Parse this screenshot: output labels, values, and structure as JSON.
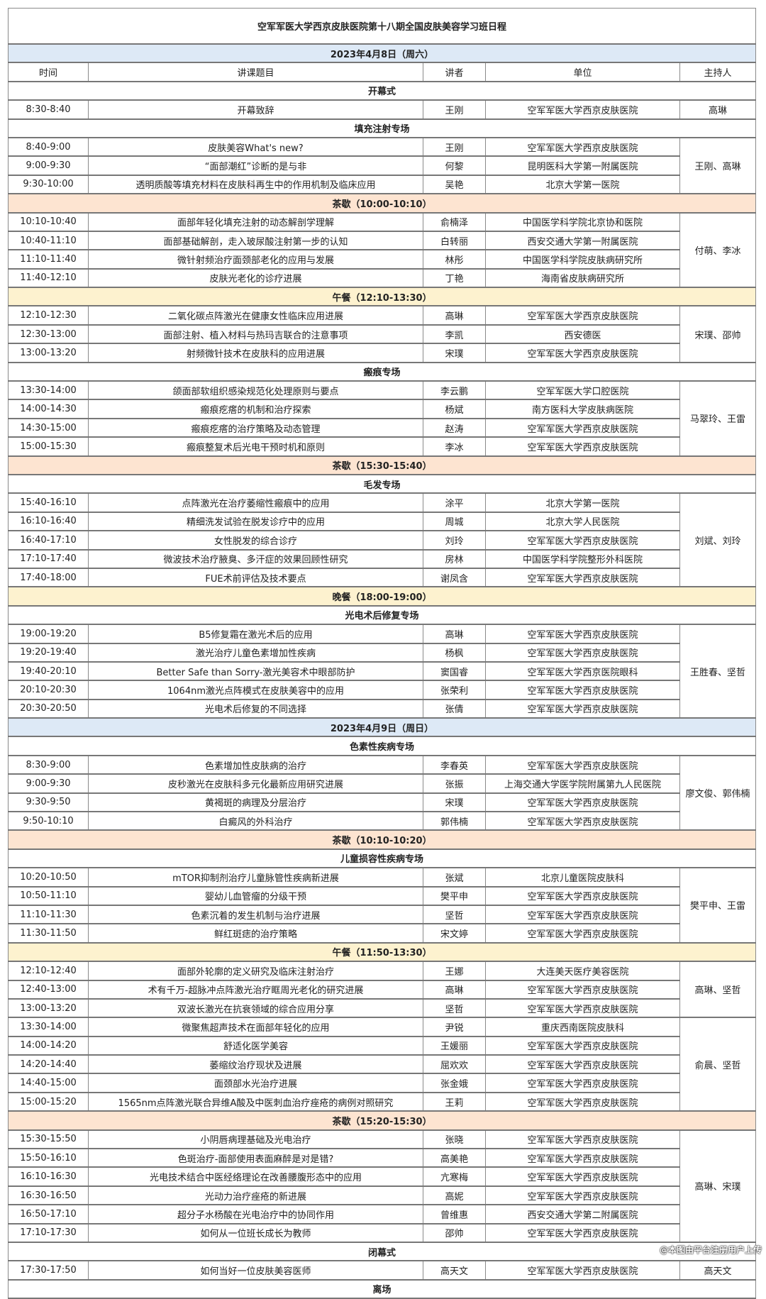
{
  "title": "空军军医大学西京皮肤医院第十八期全国皮肤美容学习班日程",
  "header": {
    "time": "时间",
    "topic": "讲课题目",
    "speaker": "讲者",
    "unit": "单位",
    "host": "主持人"
  },
  "colors": {
    "date_row": "#dde9f6",
    "tea_break": "#fde4d1",
    "meal": "#fdf2cf"
  },
  "watermark": "@本图由平台注册用户上传",
  "days": [
    {
      "date": "2023年4月8日（周六）",
      "blocks": [
        {
          "type": "section",
          "label": "开幕式"
        },
        {
          "type": "group",
          "host": "高琳",
          "talks": [
            {
              "time": "8:30-8:40",
              "topic": "开幕致辞",
              "speaker": "王刚",
              "unit": "空军军医大学西京皮肤医院"
            }
          ]
        },
        {
          "type": "section",
          "label": "填充注射专场"
        },
        {
          "type": "group",
          "host": "王刚、高琳",
          "talks": [
            {
              "time": "8:40-9:00",
              "topic": "皮肤美容What's new?",
              "speaker": "王刚",
              "unit": "空军军医大学西京皮肤医院"
            },
            {
              "time": "9:00-9:30",
              "topic": "“面部潮红”诊断的是与非",
              "speaker": "何黎",
              "unit": "昆明医科大学第一附属医院"
            },
            {
              "time": "9:30-10:00",
              "topic": "透明质酸等填充材料在皮肤科再生中的作用机制及临床应用",
              "speaker": "吴艳",
              "unit": "北京大学第一医院"
            }
          ]
        },
        {
          "type": "break",
          "label": "茶歇（10:00-10:10）"
        },
        {
          "type": "group",
          "host": "付萌、李冰",
          "talks": [
            {
              "time": "10:10-10:40",
              "topic": "面部年轻化填充注射的动态解剖学理解",
              "speaker": "俞楠泽",
              "unit": "中国医学科学院北京协和医院"
            },
            {
              "time": "10:40-11:10",
              "topic": "面部基础解剖，走入玻尿酸注射第一步的认知",
              "speaker": "白转丽",
              "unit": "西安交通大学第一附属医院"
            },
            {
              "time": "11:10-11:40",
              "topic": "微针射频治疗面颈部老化的应用与发展",
              "speaker": "林彤",
              "unit": "中国医学科学院皮肤病研究所"
            },
            {
              "time": "11:40-12:10",
              "topic": "皮肤光老化的诊疗进展",
              "speaker": "丁艳",
              "unit": "海南省皮肤病研究所"
            }
          ]
        },
        {
          "type": "meal",
          "label": "午餐（12:10-13:30）"
        },
        {
          "type": "group",
          "host": "宋璞、邵帅",
          "talks": [
            {
              "time": "12:10-12:30",
              "topic": "二氧化碳点阵激光在健康女性临床应用进展",
              "speaker": "高琳",
              "unit": "空军军医大学西京皮肤医院"
            },
            {
              "time": "12:30-13:00",
              "topic": "面部注射、植入材料与热玛吉联合的注意事项",
              "speaker": "李凯",
              "unit": "西安德医"
            },
            {
              "time": "13:00-13:20",
              "topic": "射频微针技术在皮肤科的应用进展",
              "speaker": "宋璞",
              "unit": "空军军医大学西京皮肤医院"
            }
          ]
        },
        {
          "type": "section",
          "label": "瘢痕专场"
        },
        {
          "type": "group",
          "host": "马翠玲、王雷",
          "talks": [
            {
              "time": "13:30-14:00",
              "topic": "颌面部软组织感染规范化处理原则与要点",
              "speaker": "李云鹏",
              "unit": "空军军医大学口腔医院"
            },
            {
              "time": "14:00-14:30",
              "topic": "瘢痕疙瘩的机制和治疗探索",
              "speaker": "杨斌",
              "unit": "南方医科大学皮肤病医院"
            },
            {
              "time": "14:30-15:00",
              "topic": "瘢痕疙瘩的治疗策略及动态管理",
              "speaker": "赵涛",
              "unit": "空军军医大学西京皮肤医院"
            },
            {
              "time": "15:00-15:30",
              "topic": "瘢痕整复术后光电干预时机和原则",
              "speaker": "李冰",
              "unit": "空军军医大学西京皮肤医院"
            }
          ]
        },
        {
          "type": "break",
          "label": "茶歇（15:30-15:40）"
        },
        {
          "type": "section",
          "label": "毛发专场"
        },
        {
          "type": "group",
          "host": "刘斌、刘玲",
          "talks": [
            {
              "time": "15:40-16:10",
              "topic": "点阵激光在治疗萎缩性瘢痕中的应用",
              "speaker": "涂平",
              "unit": "北京大学第一医院"
            },
            {
              "time": "16:10-16:40",
              "topic": "精细洗发试验在脱发诊疗中的应用",
              "speaker": "周城",
              "unit": "北京大学人民医院"
            },
            {
              "time": "16:40-17:10",
              "topic": "女性脱发的综合诊疗",
              "speaker": "刘玲",
              "unit": "空军军医大学西京皮肤医院"
            },
            {
              "time": "17:10-17:40",
              "topic": "微波技术治疗腋臭、多汗症的效果回顾性研究",
              "speaker": "房林",
              "unit": "中国医学科学院整形外科医院"
            },
            {
              "time": "17:40-18:00",
              "topic": "FUE术前评估及技术要点",
              "speaker": "谢凤含",
              "unit": "空军军医大学西京皮肤医院"
            }
          ]
        },
        {
          "type": "meal",
          "label": "晚餐（18:00-19:00）"
        },
        {
          "type": "section",
          "label": "光电术后修复专场"
        },
        {
          "type": "group",
          "host": "王胜春、坚哲",
          "talks": [
            {
              "time": "19:00-19:20",
              "topic": "B5修复霜在激光术后的应用",
              "speaker": "高琳",
              "unit": "空军军医大学西京皮肤医院"
            },
            {
              "time": "19:20-19:40",
              "topic": "激光治疗儿童色素增加性疾病",
              "speaker": "杨枫",
              "unit": "空军军医大学西京皮肤医院"
            },
            {
              "time": "19:40-20:10",
              "topic": "Better Safe than Sorry-激光美容术中眼部防护",
              "speaker": "窦国睿",
              "unit": "空军军医大学西京医院眼科"
            },
            {
              "time": "20:10-20:30",
              "topic": "1064nm激光点阵模式在皮肤美容中的应用",
              "speaker": "张荣利",
              "unit": "空军军医大学西京皮肤医院"
            },
            {
              "time": "20:30-20:50",
              "topic": "光电术后修复的不同选择",
              "speaker": "张倩",
              "unit": "空军军医大学西京皮肤医院"
            }
          ]
        }
      ]
    },
    {
      "date": "2023年4月9日（周日）",
      "blocks": [
        {
          "type": "section",
          "label": "色素性疾病专场"
        },
        {
          "type": "group",
          "host": "廖文俊、郭伟楠",
          "talks": [
            {
              "time": "8:30-9:00",
              "topic": "色素增加性皮肤病的治疗",
              "speaker": "李春英",
              "unit": "空军军医大学西京皮肤医院"
            },
            {
              "time": "9:00-9:30",
              "topic": "皮秒激光在皮肤科多元化最新应用研究进展",
              "speaker": "张振",
              "unit": "上海交通大学医学院附属第九人民医院"
            },
            {
              "time": "9:30-9:50",
              "topic": "黄褐斑的病理及分层治疗",
              "speaker": "宋璞",
              "unit": "空军军医大学西京皮肤医院"
            },
            {
              "time": "9:50-10:10",
              "topic": "白癜风的外科治疗",
              "speaker": "郭伟楠",
              "unit": "空军军医大学西京皮肤医院"
            }
          ]
        },
        {
          "type": "break",
          "label": "茶歇（10:10-10:20）"
        },
        {
          "type": "section",
          "label": "儿童损容性疾病专场"
        },
        {
          "type": "group",
          "host": "樊平申、王雷",
          "talks": [
            {
              "time": "10:20-10:50",
              "topic": "mTOR抑制剂治疗儿童脉管性疾病新进展",
              "speaker": "张斌",
              "unit": "北京儿童医院皮肤科"
            },
            {
              "time": "10:50-11:10",
              "topic": "婴幼儿血管瘤的分级干预",
              "speaker": "樊平申",
              "unit": "空军军医大学西京皮肤医院"
            },
            {
              "time": "11:10-11:30",
              "topic": "色素沉着的发生机制与治疗进展",
              "speaker": "坚哲",
              "unit": "空军军医大学西京皮肤医院"
            },
            {
              "time": "11:30-11:50",
              "topic": "鲜红斑痣的治疗策略",
              "speaker": "宋文婷",
              "unit": "空军军医大学西京皮肤医院"
            }
          ]
        },
        {
          "type": "meal",
          "label": "午餐（11:50-13:30）"
        },
        {
          "type": "group",
          "host": "高琳、坚哲",
          "talks": [
            {
              "time": "12:10-12:40",
              "topic": "面部外轮廓的定义研究及临床注射治疗",
              "speaker": "王娜",
              "unit": "大连美天医疗美容医院"
            },
            {
              "time": "12:40-13:00",
              "topic": "术有千万-超脉冲点阵激光治疗眶周光老化的研究进展",
              "speaker": "高琳",
              "unit": "空军军医大学西京皮肤医院"
            },
            {
              "time": "13:00-13:20",
              "topic": "双波长激光在抗衰领域的综合应用分享",
              "speaker": "坚哲",
              "unit": "空军军医大学西京皮肤医院"
            }
          ]
        },
        {
          "type": "group",
          "host": "俞晨、坚哲",
          "talks": [
            {
              "time": "13:30-14:00",
              "topic": "微聚焦超声技术在面部年轻化的应用",
              "speaker": "尹锐",
              "unit": "重庆西南医院皮肤科"
            },
            {
              "time": "14:00-14:20",
              "topic": "舒适化医学美容",
              "speaker": "王媛丽",
              "unit": "空军军医大学西京皮肤医院"
            },
            {
              "time": "14:20-14:40",
              "topic": "萎缩纹治疗现状及进展",
              "speaker": "屈欢欢",
              "unit": "空军军医大学西京皮肤医院"
            },
            {
              "time": "14:40-15:00",
              "topic": "面颈部水光治疗进展",
              "speaker": "张金娥",
              "unit": "空军军医大学西京皮肤医院"
            },
            {
              "time": "15:00-15:20",
              "topic": "1565nm点阵激光联合异维A酸及中医刺血治疗痤疮的病例对照研究",
              "speaker": "王莉",
              "unit": "空军军医大学西京皮肤医院"
            }
          ]
        },
        {
          "type": "break",
          "label": "茶歇（15:20-15:30）"
        },
        {
          "type": "group",
          "host": "高琳、宋璞",
          "talks": [
            {
              "time": "15:30-15:50",
              "topic": "小阴唇病理基础及光电治疗",
              "speaker": "张晓",
              "unit": "空军军医大学西京皮肤医院"
            },
            {
              "time": "15:50-16:10",
              "topic": "色斑治疗-面部使用表面麻醉是对是错?",
              "speaker": "高美艳",
              "unit": "空军军医大学西京皮肤医院"
            },
            {
              "time": "16:10-16:30",
              "topic": "光电技术结合中医经络理论在改善腰腹形态中的应用",
              "speaker": "亢寒梅",
              "unit": "空军军医大学西京皮肤医院"
            },
            {
              "time": "16:30-16:50",
              "topic": "光动力治疗痤疮的新进展",
              "speaker": "高妮",
              "unit": "空军军医大学西京皮肤医院"
            },
            {
              "time": "16:50-17:10",
              "topic": "超分子水杨酸在光电治疗中的协同作用",
              "speaker": "曾维惠",
              "unit": "西安交通大学第二附属医院"
            },
            {
              "time": "17:10-17:30",
              "topic": "如何从一位班长成长为教师",
              "speaker": "邵帅",
              "unit": "空军军医大学西京皮肤医院"
            }
          ]
        },
        {
          "type": "section",
          "label": "闭幕式"
        },
        {
          "type": "group",
          "host": "高天文",
          "talks": [
            {
              "time": "17:30-17:50",
              "topic": "如何当好一位皮肤美容医师",
              "speaker": "高天文",
              "unit": "空军军医大学西京皮肤医院"
            }
          ]
        },
        {
          "type": "section",
          "label": "离场"
        }
      ]
    }
  ]
}
